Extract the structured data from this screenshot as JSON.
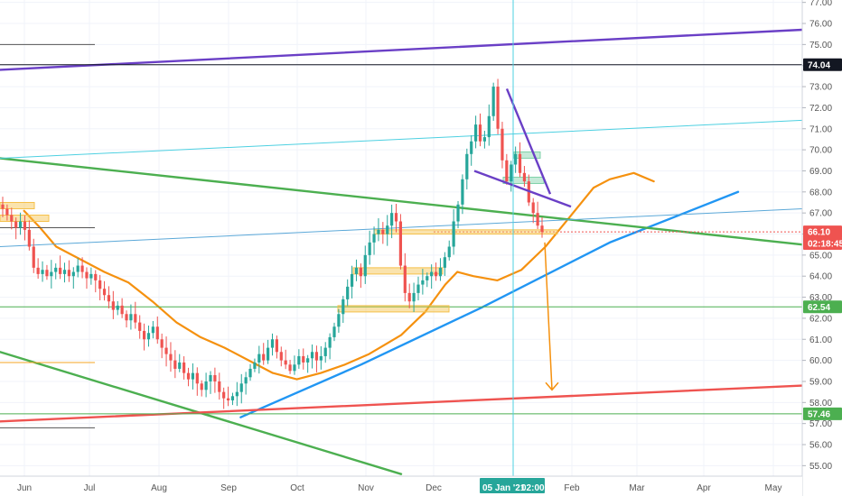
{
  "chart_data": {
    "type": "candlestick",
    "x_axis": {
      "tick_labels": [
        "Jun",
        "Jul",
        "Aug",
        "Sep",
        "Oct",
        "Nov",
        "Dec",
        "Feb",
        "Mar",
        "Apr",
        "May"
      ],
      "crosshair_date": "05 Jan '21",
      "crosshair_time": "02:00"
    },
    "y_axis": {
      "range": [
        54.5,
        77.2
      ],
      "tick_labels": [
        "77.00",
        "76.00",
        "75.00",
        "74.00",
        "73.00",
        "72.00",
        "71.00",
        "70.00",
        "69.00",
        "68.00",
        "67.00",
        "66.00",
        "65.00",
        "64.00",
        "63.00",
        "62.00",
        "61.00",
        "60.00",
        "59.00",
        "58.00",
        "57.00",
        "56.00",
        "55.00"
      ]
    },
    "price_tags": [
      {
        "label": "74.04",
        "value": 74.04,
        "bg": "#131722",
        "fg": "#ffffff"
      },
      {
        "label": "66.10",
        "value": 66.1,
        "bg": "#ef5350",
        "fg": "#ffffff"
      },
      {
        "label": "02:18:45",
        "value": 65.55,
        "bg": "#ef5350",
        "fg": "#ffffff"
      },
      {
        "label": "62.54",
        "value": 62.54,
        "bg": "#4caf50",
        "fg": "#ffffff"
      },
      {
        "label": "57.46",
        "value": 57.46,
        "bg": "#4caf50",
        "fg": "#ffffff"
      }
    ],
    "series": [
      {
        "kind": "candles",
        "color_up": "#26a69a",
        "color_down": "#ef5350",
        "x_range": [
          "Jun",
          "Jan 05"
        ],
        "closes": [
          67.2,
          66.9,
          66.6,
          66.3,
          66.6,
          66.2,
          65.4,
          64.4,
          64.1,
          64.3,
          64.0,
          64.2,
          64.4,
          64.1,
          64.3,
          64.0,
          64.2,
          64.5,
          64.2,
          63.9,
          64.1,
          63.8,
          63.4,
          63.1,
          62.8,
          62.4,
          62.6,
          62.2,
          61.9,
          62.2,
          61.8,
          61.4,
          61.0,
          61.3,
          61.6,
          61.0,
          60.6,
          60.3,
          60.0,
          59.6,
          59.9,
          59.4,
          59.1,
          59.4,
          58.9,
          58.6,
          59.0,
          59.3,
          59.0,
          58.5,
          58.2,
          58.1,
          58.3,
          58.5,
          58.9,
          59.2,
          59.6,
          59.9,
          60.3,
          60.0,
          60.6,
          61.0,
          60.4,
          60.0,
          59.8,
          59.5,
          59.8,
          60.2,
          59.9,
          60.1,
          60.4,
          60.0,
          60.2,
          60.6,
          61.1,
          61.6,
          62.2,
          62.9,
          63.5,
          64.1,
          64.4,
          64.0,
          65.0,
          65.6,
          66.0,
          66.2,
          66.0,
          66.4,
          67.0,
          66.6,
          64.5,
          63.2,
          62.8,
          63.2,
          63.6,
          63.8,
          64.0,
          64.2,
          64.0,
          64.4,
          64.9,
          65.4,
          66.6,
          67.4,
          68.6,
          69.8,
          70.4,
          71.2,
          70.4,
          70.6,
          71.6,
          73.0,
          71.0,
          69.5,
          68.5,
          69.3,
          69.8,
          68.9,
          68.5,
          67.5,
          67.0,
          66.4,
          66.1
        ]
      },
      {
        "kind": "line",
        "name": "",
        "color": "#f5910f",
        "points": [
          [
            0.03,
            67.1
          ],
          [
            0.05,
            66.3
          ],
          [
            0.07,
            65.4
          ],
          [
            0.1,
            64.8
          ],
          [
            0.13,
            64.2
          ],
          [
            0.16,
            63.7
          ],
          [
            0.19,
            62.8
          ],
          [
            0.22,
            61.8
          ],
          [
            0.25,
            61.1
          ],
          [
            0.28,
            60.6
          ],
          [
            0.31,
            60.0
          ],
          [
            0.34,
            59.4
          ],
          [
            0.37,
            59.1
          ],
          [
            0.4,
            59.4
          ],
          [
            0.43,
            59.8
          ],
          [
            0.46,
            60.3
          ],
          [
            0.5,
            61.2
          ],
          [
            0.53,
            62.3
          ],
          [
            0.555,
            63.6
          ],
          [
            0.57,
            64.2
          ],
          [
            0.59,
            64.0
          ],
          [
            0.62,
            63.8
          ],
          [
            0.65,
            64.3
          ],
          [
            0.68,
            65.4
          ],
          [
            0.71,
            66.8
          ],
          [
            0.74,
            68.2
          ],
          [
            0.76,
            68.6
          ],
          [
            0.79,
            68.9
          ],
          [
            0.815,
            68.5
          ]
        ]
      },
      {
        "kind": "line",
        "name": "",
        "color": "#2196f3",
        "points": [
          [
            0.3,
            57.3
          ],
          [
            0.45,
            59.8
          ],
          [
            0.6,
            62.5
          ],
          [
            0.76,
            65.6
          ],
          [
            0.92,
            68.0
          ]
        ]
      },
      {
        "kind": "line",
        "name": "",
        "color": "#4caf50",
        "points": [
          [
            0.0,
            69.6
          ],
          [
            1.0,
            65.5
          ]
        ]
      },
      {
        "kind": "line",
        "name": "",
        "color": "#4caf50",
        "points": [
          [
            0.0,
            60.4
          ],
          [
            0.5,
            54.6
          ]
        ]
      },
      {
        "kind": "line",
        "name": "",
        "color": "#6a3fc6",
        "points": [
          [
            0.0,
            73.8
          ],
          [
            1.0,
            75.7
          ]
        ]
      },
      {
        "kind": "line",
        "name": "",
        "color": "#ef5350",
        "points": [
          [
            0.0,
            57.1
          ],
          [
            1.0,
            58.8
          ]
        ]
      },
      {
        "kind": "line",
        "name": "",
        "color": "#4dd0e1",
        "points": [
          [
            0.0,
            69.6
          ],
          [
            1.0,
            71.4
          ]
        ]
      },
      {
        "kind": "line",
        "name": "",
        "color": "#5ba8d8",
        "points": [
          [
            0.0,
            65.4
          ],
          [
            1.0,
            67.2
          ]
        ]
      }
    ]
  }
}
